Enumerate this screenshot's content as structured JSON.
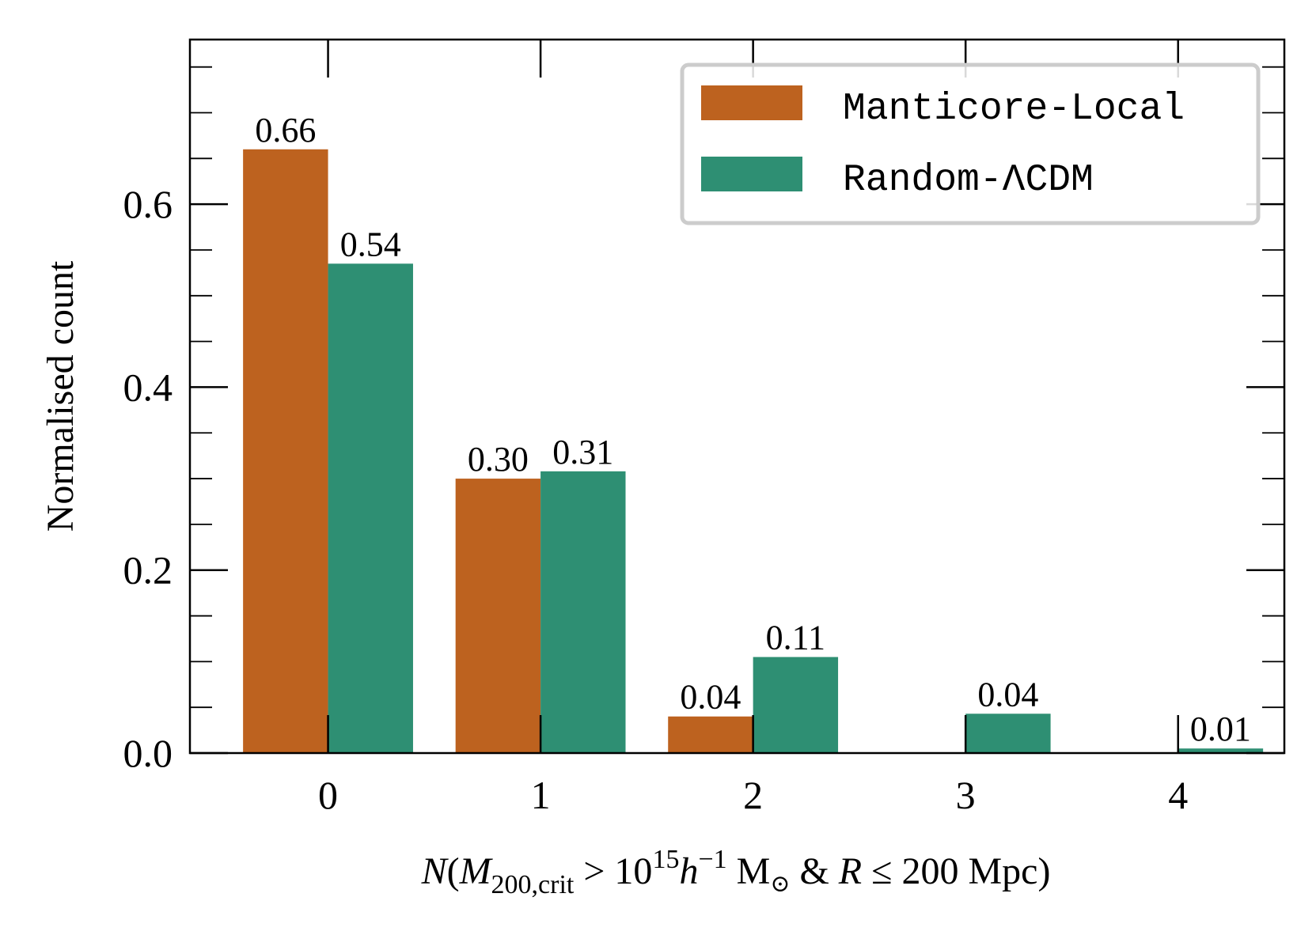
{
  "chart_data": {
    "type": "bar",
    "categories": [
      "0",
      "1",
      "2",
      "3",
      "4"
    ],
    "series": [
      {
        "name": "Manticore-Local",
        "color": "#bd621f",
        "values": [
          0.66,
          0.3,
          0.04,
          0.0,
          0.0
        ],
        "labels": [
          "0.66",
          "0.30",
          "0.04",
          null,
          null
        ]
      },
      {
        "name": "Random-ΛCDM",
        "color": "#2e8f73",
        "values": [
          0.535,
          0.308,
          0.105,
          0.043,
          0.005
        ],
        "labels": [
          "0.54",
          "0.31",
          "0.11",
          "0.04",
          "0.01"
        ]
      }
    ],
    "ylim": [
      0,
      0.78
    ],
    "xlim": [
      -0.65,
      4.5
    ],
    "yticks": [
      0.0,
      0.2,
      0.4,
      0.6
    ],
    "ytick_labels": [
      "0.0",
      "0.2",
      "0.4",
      "0.6"
    ],
    "xticks": [
      0,
      1,
      2,
      3,
      4
    ],
    "xtick_labels": [
      "0",
      "1",
      "2",
      "3",
      "4"
    ],
    "ylabel": "Normalised count",
    "xlabel": {
      "n": "N",
      "open": "(",
      "m": "M",
      "m_sub": "200,crit",
      "gt": " > 10",
      "exp": "15",
      "h": "h",
      "h_exp": "−1",
      "msun": " M",
      "sun_sub": "⊙",
      "amp": " & ",
      "r": "R",
      "rest": " ≤ 200 Mpc)"
    },
    "legend_position": "top-right",
    "grid": false
  }
}
